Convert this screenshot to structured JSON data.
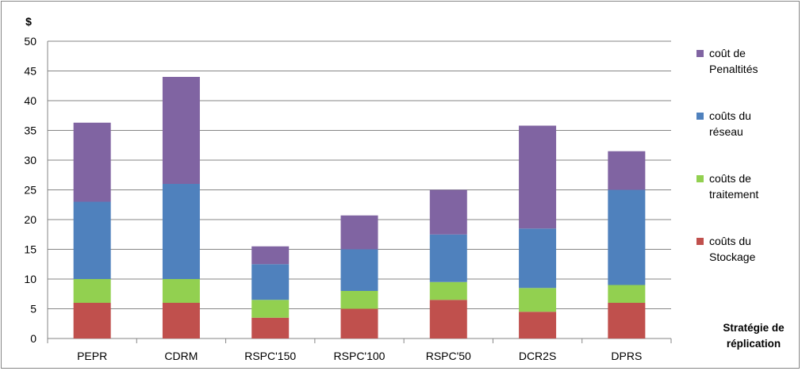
{
  "chart_data": {
    "type": "bar",
    "stacked": true,
    "categories": [
      "PEPR",
      "CDRM",
      "RSPC'150",
      "RSPC'100",
      "RSPC'50",
      "DCR2S",
      "DPRS"
    ],
    "series": [
      {
        "name": [
          "coûts du",
          "Stockage"
        ],
        "color": "#c0504d",
        "values": [
          6,
          6,
          3.5,
          5,
          6.5,
          4.5,
          6
        ]
      },
      {
        "name": [
          "coûts de",
          "traitement"
        ],
        "color": "#92d050",
        "values": [
          4,
          4,
          3,
          3,
          3,
          4,
          3
        ]
      },
      {
        "name": [
          "coûts du",
          "réseau"
        ],
        "color": "#4f81bd",
        "values": [
          13,
          16,
          6,
          7,
          8,
          10,
          16
        ]
      },
      {
        "name": [
          "coût de",
          "Penaltités"
        ],
        "color": "#8064a2",
        "values": [
          13.3,
          18,
          3,
          5.7,
          7.5,
          17.3,
          6.5
        ]
      }
    ],
    "ylabel": "$",
    "xlabel": [
      "Stratégie de",
      "réplication"
    ],
    "ylim": [
      0,
      50
    ],
    "yticks": [
      0,
      5,
      10,
      15,
      20,
      25,
      30,
      35,
      40,
      45,
      50
    ],
    "grid": true,
    "legend_position": "right",
    "legend_order": "reverse"
  }
}
